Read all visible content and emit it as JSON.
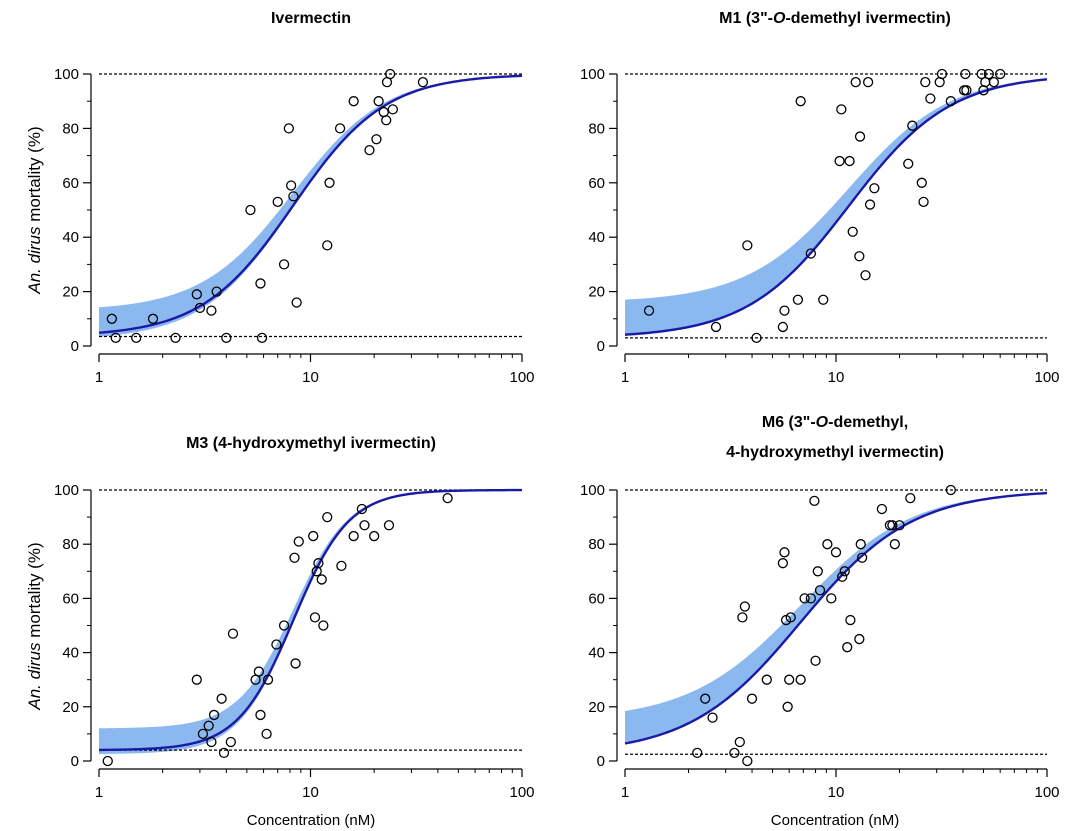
{
  "figure": {
    "y_axis_label_prefix": "An. dirus",
    "y_axis_label_suffix": " mortality (%)",
    "x_axis_label": "Concentration (nM)"
  },
  "chart_data": [
    {
      "type": "scatter",
      "title_lines": [
        "Ivermectin"
      ],
      "x_scale": "log",
      "xlim": [
        1,
        100
      ],
      "ylim": [
        0,
        100
      ],
      "x_ticks": [
        "1",
        "10",
        "100"
      ],
      "y_ticks": [
        "0",
        "20",
        "40",
        "60",
        "80",
        "100"
      ],
      "reference_lines": [
        100,
        3.5
      ],
      "band_color": "#8cb8f0",
      "curve_color": "#1a1aa6",
      "fit": {
        "bottom": 3.5,
        "top": 100,
        "ec50": 8.3,
        "hill": 2.0,
        "band_low": 2,
        "band_high": 13
      },
      "points": [
        [
          1.15,
          10
        ],
        [
          1.2,
          3
        ],
        [
          1.5,
          3
        ],
        [
          1.8,
          10
        ],
        [
          2.3,
          3
        ],
        [
          2.9,
          19
        ],
        [
          3.0,
          14
        ],
        [
          3.4,
          13
        ],
        [
          3.6,
          20
        ],
        [
          4.0,
          3
        ],
        [
          5.2,
          50
        ],
        [
          5.8,
          23
        ],
        [
          5.9,
          3
        ],
        [
          7.0,
          53
        ],
        [
          7.5,
          30
        ],
        [
          7.9,
          80
        ],
        [
          8.1,
          59
        ],
        [
          8.3,
          55
        ],
        [
          8.6,
          16
        ],
        [
          12.0,
          37
        ],
        [
          12.3,
          60
        ],
        [
          13.8,
          80
        ],
        [
          16.0,
          90
        ],
        [
          19.0,
          72
        ],
        [
          20.5,
          76
        ],
        [
          21.0,
          90
        ],
        [
          22.2,
          86
        ],
        [
          22.8,
          83
        ],
        [
          23.0,
          97
        ],
        [
          23.8,
          100
        ],
        [
          24.5,
          87
        ],
        [
          34.0,
          97
        ]
      ]
    },
    {
      "type": "scatter",
      "title_lines": [
        "M1 (3\"-O-demethyl ivermectin)"
      ],
      "x_scale": "log",
      "xlim": [
        1,
        100
      ],
      "ylim": [
        0,
        100
      ],
      "x_ticks": [
        "1",
        "10",
        "100"
      ],
      "y_ticks": [
        "0",
        "20",
        "40",
        "60",
        "80",
        "100"
      ],
      "reference_lines": [
        100,
        3
      ],
      "band_color": "#8cb8f0",
      "curve_color": "#1a1aa6",
      "fit": {
        "bottom": 3,
        "top": 100,
        "ec50": 11.5,
        "hill": 1.8,
        "band_low": 2.5,
        "band_high": 16
      },
      "points": [
        [
          1.3,
          13
        ],
        [
          2.7,
          7
        ],
        [
          3.8,
          37
        ],
        [
          4.2,
          3
        ],
        [
          5.6,
          7
        ],
        [
          5.7,
          13
        ],
        [
          6.6,
          17
        ],
        [
          6.8,
          90
        ],
        [
          7.6,
          34
        ],
        [
          8.7,
          17
        ],
        [
          10.4,
          68
        ],
        [
          10.6,
          87
        ],
        [
          11.6,
          68
        ],
        [
          12.0,
          42
        ],
        [
          12.4,
          97
        ],
        [
          12.9,
          33
        ],
        [
          13.0,
          77
        ],
        [
          13.8,
          26
        ],
        [
          14.2,
          97
        ],
        [
          14.5,
          52
        ],
        [
          15.2,
          58
        ],
        [
          22.0,
          67
        ],
        [
          23.0,
          81
        ],
        [
          25.5,
          60
        ],
        [
          26.0,
          53
        ],
        [
          26.5,
          97
        ],
        [
          28.0,
          91
        ],
        [
          31.0,
          97
        ],
        [
          31.8,
          100
        ],
        [
          35.0,
          90
        ],
        [
          40.5,
          94
        ],
        [
          41.0,
          100
        ],
        [
          41.5,
          94
        ],
        [
          49.0,
          100
        ],
        [
          50.0,
          94
        ],
        [
          51.0,
          97
        ],
        [
          53.0,
          100
        ],
        [
          56.0,
          97
        ],
        [
          60.0,
          100
        ]
      ]
    },
    {
      "type": "scatter",
      "title_lines": [
        "M3 (4-hydroxymethyl ivermectin)"
      ],
      "x_scale": "log",
      "xlim": [
        1,
        100
      ],
      "ylim": [
        0,
        100
      ],
      "x_ticks": [
        "1",
        "10",
        "100"
      ],
      "y_ticks": [
        "0",
        "20",
        "40",
        "60",
        "80",
        "100"
      ],
      "reference_lines": [
        100,
        4
      ],
      "band_color": "#8cb8f0",
      "curve_color": "#1a1aa6",
      "fit": {
        "bottom": 4,
        "top": 100,
        "ec50": 8.3,
        "hill": 3.3,
        "band_low": 2.5,
        "band_high": 12
      },
      "points": [
        [
          1.1,
          0
        ],
        [
          2.9,
          30
        ],
        [
          3.1,
          10
        ],
        [
          3.3,
          13
        ],
        [
          3.4,
          7
        ],
        [
          3.5,
          17
        ],
        [
          3.8,
          23
        ],
        [
          3.9,
          3
        ],
        [
          4.2,
          7
        ],
        [
          4.3,
          47
        ],
        [
          5.5,
          30
        ],
        [
          5.7,
          33
        ],
        [
          5.8,
          17
        ],
        [
          6.2,
          10
        ],
        [
          6.3,
          30
        ],
        [
          6.9,
          43
        ],
        [
          7.5,
          50
        ],
        [
          8.4,
          75
        ],
        [
          8.5,
          36
        ],
        [
          8.8,
          81
        ],
        [
          10.3,
          83
        ],
        [
          10.5,
          53
        ],
        [
          10.7,
          70
        ],
        [
          10.9,
          73
        ],
        [
          11.3,
          67
        ],
        [
          11.5,
          50
        ],
        [
          12.0,
          90
        ],
        [
          14.0,
          72
        ],
        [
          16.0,
          83
        ],
        [
          17.5,
          93
        ],
        [
          18.0,
          87
        ],
        [
          20.0,
          83
        ],
        [
          23.5,
          87
        ],
        [
          44.5,
          97
        ]
      ]
    },
    {
      "type": "scatter",
      "title_lines": [
        "M6 (3\"-O-demethyl,",
        "4-hydroxymethyl ivermectin)"
      ],
      "x_scale": "log",
      "xlim": [
        1,
        100
      ],
      "ylim": [
        0,
        100
      ],
      "x_ticks": [
        "1",
        "10",
        "100"
      ],
      "y_ticks": [
        "0",
        "20",
        "40",
        "60",
        "80",
        "100"
      ],
      "reference_lines": [
        100,
        2.5
      ],
      "band_color": "#8cb8f0",
      "curve_color": "#1a1aa6",
      "fit": {
        "bottom": 2.5,
        "top": 100,
        "ec50": 6.8,
        "hill": 1.65,
        "band_low": 2.5,
        "band_high": 15
      },
      "points": [
        [
          2.2,
          3
        ],
        [
          2.4,
          23
        ],
        [
          2.6,
          16
        ],
        [
          3.3,
          3
        ],
        [
          3.5,
          7
        ],
        [
          3.6,
          53
        ],
        [
          3.7,
          57
        ],
        [
          3.8,
          0
        ],
        [
          4.0,
          23
        ],
        [
          4.7,
          30
        ],
        [
          5.6,
          73
        ],
        [
          5.7,
          77
        ],
        [
          5.8,
          52
        ],
        [
          5.9,
          20
        ],
        [
          6.0,
          30
        ],
        [
          6.1,
          53
        ],
        [
          6.8,
          30
        ],
        [
          7.1,
          60
        ],
        [
          7.6,
          60
        ],
        [
          7.9,
          96
        ],
        [
          8.0,
          37
        ],
        [
          8.2,
          70
        ],
        [
          8.4,
          63
        ],
        [
          9.1,
          80
        ],
        [
          9.5,
          60
        ],
        [
          10.0,
          77
        ],
        [
          10.7,
          68
        ],
        [
          11.0,
          70
        ],
        [
          11.3,
          42
        ],
        [
          11.7,
          52
        ],
        [
          12.9,
          45
        ],
        [
          13.1,
          80
        ],
        [
          13.3,
          75
        ],
        [
          16.5,
          93
        ],
        [
          18.0,
          87
        ],
        [
          18.5,
          87
        ],
        [
          19.0,
          80
        ],
        [
          20.0,
          87
        ],
        [
          22.5,
          97
        ],
        [
          35.0,
          100
        ]
      ]
    }
  ]
}
